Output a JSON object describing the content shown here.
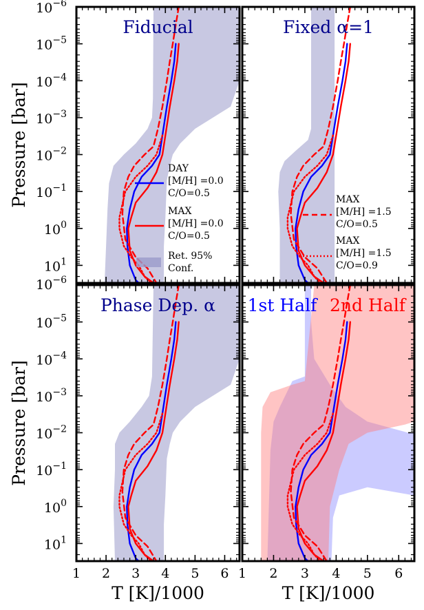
{
  "chart_data": {
    "type": "line",
    "shared": {
      "xlabel": "T [K]/1000",
      "ylabel": "Pressure [bar]",
      "xlim": [
        1,
        6.5
      ],
      "ylim": [
        30,
        1e-06
      ],
      "y_scale": "log",
      "xticks": [
        1,
        2,
        3,
        4,
        5,
        6
      ],
      "yticks": [
        {
          "v": 1e-06,
          "base": "10",
          "exp": "−6"
        },
        {
          "v": 1e-05,
          "base": "10",
          "exp": "−5"
        },
        {
          "v": 0.0001,
          "base": "10",
          "exp": "−4"
        },
        {
          "v": 0.001,
          "base": "10",
          "exp": "−3"
        },
        {
          "v": 0.01,
          "base": "10",
          "exp": "−2"
        },
        {
          "v": 0.1,
          "base": "10",
          "exp": "−1"
        },
        {
          "v": 1,
          "base": "10",
          "exp": "0"
        },
        {
          "v": 10,
          "base": "10",
          "exp": "1"
        }
      ],
      "colors": {
        "day": "#0000ff",
        "max": "#ff0000",
        "band": "#9b9bca",
        "first_half": "#8b8bff",
        "second_half": "#ff7d7d",
        "title": "#00008b"
      },
      "series": [
        {
          "name": "DAY [M/H] =0.0 C/O=0.5",
          "style": "solid",
          "color": "#0000ff",
          "points": [
            [
              4.35,
              1e-05
            ],
            [
              4.3,
              3e-05
            ],
            [
              4.2,
              0.0001
            ],
            [
              4.05,
              0.0005
            ],
            [
              3.9,
              0.003
            ],
            [
              3.8,
              0.01
            ],
            [
              3.55,
              0.02
            ],
            [
              3.2,
              0.04
            ],
            [
              2.95,
              0.1
            ],
            [
              2.8,
              0.3
            ],
            [
              2.7,
              1
            ],
            [
              2.72,
              3
            ],
            [
              2.8,
              10
            ],
            [
              3,
              25
            ],
            [
              3.1,
              30
            ]
          ]
        },
        {
          "name": "MAX [M/H] =0.0 C/O=0.5",
          "style": "solid",
          "color": "#ff0000",
          "points": [
            [
              4.45,
              1e-05
            ],
            [
              4.4,
              3e-05
            ],
            [
              4.3,
              0.0001
            ],
            [
              4.15,
              0.0005
            ],
            [
              4.0,
              0.003
            ],
            [
              3.9,
              0.01
            ],
            [
              3.7,
              0.03
            ],
            [
              3.4,
              0.08
            ],
            [
              3.0,
              0.2
            ],
            [
              2.85,
              0.5
            ],
            [
              2.75,
              1
            ],
            [
              2.8,
              4
            ],
            [
              3.0,
              10
            ],
            [
              3.3,
              20
            ],
            [
              3.6,
              30
            ]
          ]
        },
        {
          "name": "MAX [M/H] =1.5 C/O=0.5",
          "style": "dashed",
          "color": "#ff0000",
          "points": [
            [
              4.45,
              1e-06
            ],
            [
              4.35,
              3e-06
            ],
            [
              4.25,
              1e-05
            ],
            [
              4.15,
              3e-05
            ],
            [
              4.05,
              0.0001
            ],
            [
              3.9,
              0.0005
            ],
            [
              3.75,
              0.002
            ],
            [
              3.6,
              0.006
            ],
            [
              3.3,
              0.01
            ],
            [
              2.95,
              0.02
            ],
            [
              2.75,
              0.04
            ],
            [
              2.6,
              0.1
            ],
            [
              2.55,
              0.4
            ],
            [
              2.65,
              2
            ],
            [
              3.0,
              6
            ],
            [
              3.4,
              12
            ],
            [
              3.7,
              30
            ]
          ]
        },
        {
          "name": "MAX [M/H] =1.5 C/O=0.9",
          "style": "dotted",
          "color": "#ff0000",
          "points": [
            [
              3.9,
              0.003
            ],
            [
              3.7,
              0.01
            ],
            [
              3.4,
              0.02
            ],
            [
              3.0,
              0.04
            ],
            [
              2.65,
              0.1
            ],
            [
              2.45,
              0.5
            ],
            [
              2.45,
              1
            ],
            [
              2.6,
              3
            ],
            [
              2.85,
              6
            ],
            [
              3.1,
              10
            ],
            [
              3.3,
              20
            ],
            [
              3.5,
              30
            ]
          ]
        }
      ]
    },
    "panels": [
      {
        "title": "Fiducial",
        "title_color": "#00008b",
        "legend": "left",
        "bands": [
          {
            "name": "Ret. 95% Conf.",
            "color": "#9b9bca",
            "opacity": 0.55,
            "left": [
              [
                3.6,
                1e-06
              ],
              [
                3.58,
                0.0003
              ],
              [
                3.55,
                0.001
              ],
              [
                3.4,
                0.002
              ],
              [
                3.0,
                0.005
              ],
              [
                2.6,
                0.01
              ],
              [
                2.25,
                0.02
              ],
              [
                2.1,
                0.06
              ],
              [
                2.05,
                0.3
              ],
              [
                2.0,
                3
              ],
              [
                1.95,
                30
              ]
            ],
            "right": [
              [
                6.5,
                1e-06
              ],
              [
                6.5,
                0.0001
              ],
              [
                6.2,
                0.0005
              ],
              [
                5.0,
                0.002
              ],
              [
                4.5,
                0.005
              ],
              [
                4.25,
                0.01
              ],
              [
                4.15,
                0.02
              ],
              [
                4.05,
                0.05
              ],
              [
                4.0,
                0.5
              ],
              [
                3.95,
                3
              ],
              [
                3.95,
                30
              ]
            ]
          }
        ]
      },
      {
        "title": "Fixed α=1",
        "title_color": "#00008b",
        "legend": "right",
        "bands": [
          {
            "name": "Ret. 95% Conf.",
            "color": "#9b9bca",
            "opacity": 0.55,
            "left": [
              [
                3.2,
                1e-06
              ],
              [
                3.2,
                0.002
              ],
              [
                3.1,
                0.004
              ],
              [
                2.7,
                0.008
              ],
              [
                2.35,
                0.015
              ],
              [
                2.2,
                0.03
              ],
              [
                2.15,
                0.1
              ],
              [
                2.2,
                1
              ],
              [
                2.2,
                3
              ],
              [
                2.2,
                30
              ]
            ],
            "right": [
              [
                3.95,
                1e-06
              ],
              [
                3.95,
                0.001
              ],
              [
                3.95,
                0.01
              ],
              [
                3.95,
                0.1
              ],
              [
                3.95,
                30
              ]
            ]
          }
        ]
      },
      {
        "title": "Phase Dep. α",
        "title_color": "#00008b",
        "legend": "none",
        "bands": [
          {
            "name": "Ret. 95% Conf.",
            "color": "#9b9bca",
            "opacity": 0.55,
            "left": [
              [
                3.6,
                1e-06
              ],
              [
                3.55,
                0.0003
              ],
              [
                3.45,
                0.001
              ],
              [
                3.2,
                0.002
              ],
              [
                2.8,
                0.005
              ],
              [
                2.45,
                0.01
              ],
              [
                2.3,
                0.02
              ],
              [
                2.3,
                0.1
              ],
              [
                2.25,
                1
              ],
              [
                2.3,
                30
              ]
            ],
            "right": [
              [
                6.5,
                1e-06
              ],
              [
                6.5,
                0.0001
              ],
              [
                6.2,
                0.0005
              ],
              [
                5.0,
                0.002
              ],
              [
                4.5,
                0.005
              ],
              [
                4.25,
                0.01
              ],
              [
                4.15,
                0.02
              ],
              [
                4.05,
                0.05
              ],
              [
                4.0,
                0.5
              ],
              [
                3.95,
                3
              ],
              [
                3.95,
                30
              ]
            ]
          }
        ]
      },
      {
        "title_a": "1st Half",
        "title_b": "2nd Half",
        "title_a_color": "#0000ff",
        "title_b_color": "#ff0000",
        "legend": "none",
        "bands": [
          {
            "name": "1st Half",
            "color": "#8b8bff",
            "opacity": 0.45,
            "left": [
              [
                3.0,
                1e-06
              ],
              [
                3.0,
                0.0003
              ],
              [
                2.6,
                0.0004
              ],
              [
                2.2,
                0.002
              ],
              [
                2.0,
                0.005
              ],
              [
                1.9,
                0.03
              ],
              [
                1.85,
                1
              ],
              [
                1.8,
                30
              ]
            ],
            "right": [
              [
                3.2,
                1e-06
              ],
              [
                3.2,
                1e-05
              ],
              [
                3.3,
                0.0001
              ],
              [
                3.8,
                0.0005
              ],
              [
                4.3,
                0.002
              ],
              [
                5.0,
                0.005
              ],
              [
                6.3,
                0.01
              ],
              [
                6.5,
                0.01
              ],
              [
                6.5,
                0.5
              ],
              [
                5.0,
                0.3
              ],
              [
                4.1,
                0.5
              ],
              [
                3.9,
                2
              ],
              [
                3.85,
                30
              ]
            ]
          },
          {
            "name": "2nd Half",
            "color": "#ff7d7d",
            "opacity": 0.45,
            "left": [
              [
                3.3,
                1e-06
              ],
              [
                3.0,
                0.0004
              ],
              [
                2.6,
                0.0005
              ],
              [
                1.9,
                0.0008
              ],
              [
                1.65,
                0.002
              ],
              [
                1.6,
                0.01
              ],
              [
                1.6,
                1
              ],
              [
                1.6,
                30
              ]
            ],
            "right": [
              [
                6.5,
                1e-06
              ],
              [
                6.5,
                0.005
              ],
              [
                6.2,
                0.006
              ],
              [
                5.0,
                0.01
              ],
              [
                4.4,
                0.02
              ],
              [
                4.1,
                0.1
              ],
              [
                3.8,
                1
              ],
              [
                3.75,
                30
              ]
            ]
          }
        ]
      }
    ],
    "legend_entries": {
      "day": [
        "DAY",
        "[M/H]  =0.0",
        "C/O=0.5"
      ],
      "max": [
        "MAX",
        "[M/H]  =0.0",
        "C/O=0.5"
      ],
      "band": [
        "Ret. 95%",
        "Conf."
      ],
      "max_dashed": [
        "MAX",
        "[M/H]  =1.5",
        "C/O=0.5"
      ],
      "max_dotted": [
        "MAX",
        "[M/H]  =1.5",
        "C/O=0.9"
      ]
    }
  }
}
